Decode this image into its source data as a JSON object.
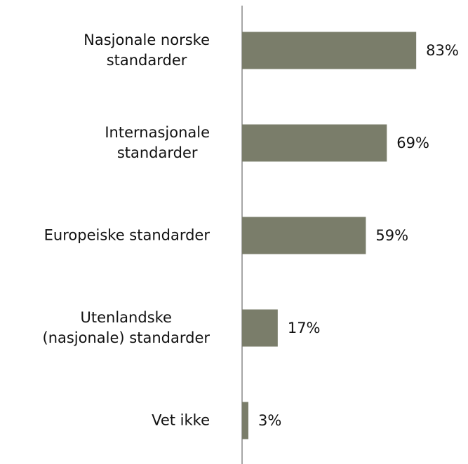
{
  "chart_data": {
    "type": "bar",
    "orientation": "horizontal",
    "categories": [
      "Nasjonale norske\nstandarder",
      "Internasjonale\nstandarder",
      "Europeiske standarder",
      "Utenlandske\n(nasjonale) standarder",
      "Vet ikke"
    ],
    "values": [
      83,
      69,
      59,
      17,
      3
    ],
    "value_labels": [
      "83%",
      "69%",
      "59%",
      "17%",
      "3%"
    ],
    "color": "#7a7d6a"
  }
}
